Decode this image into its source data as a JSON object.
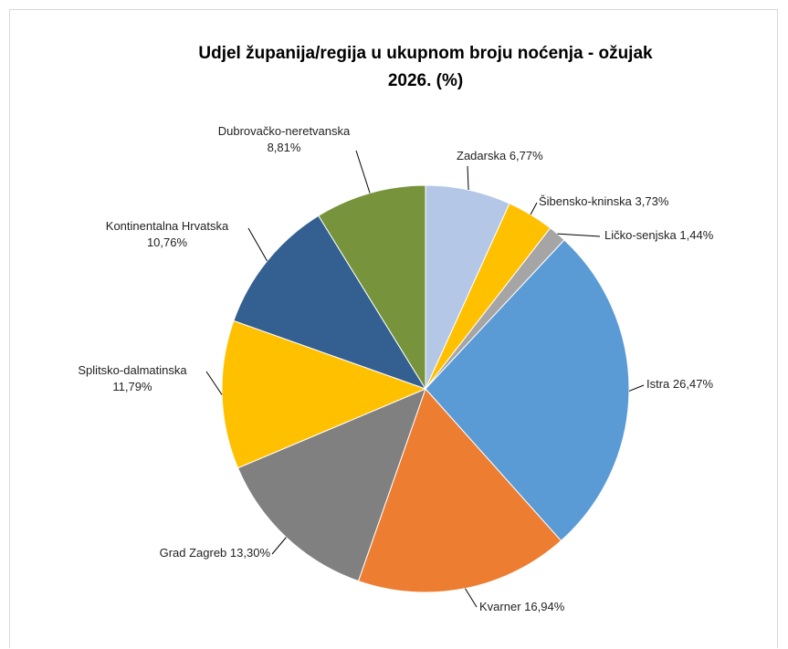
{
  "chart_data": {
    "type": "pie",
    "title": "Udjel županija/regija u ukupnom broju noćenja - ožujak 2026. (%)",
    "categories": [
      "Zadarska",
      "Šibensko-kninska",
      "Ličko-senjska",
      "Istra",
      "Kvarner",
      "Grad Zagreb",
      "Splitsko-dalmatinska",
      "Kontinentalna Hrvatska",
      "Dubrovačko-neretvanska"
    ],
    "values": [
      6.77,
      3.73,
      1.44,
      26.47,
      16.94,
      13.3,
      11.79,
      10.76,
      8.81
    ],
    "value_labels": [
      "6,77%",
      "3,73%",
      "1,44%",
      "26,47%",
      "16,94%",
      "13,30%",
      "11,79%",
      "10,76%",
      "8,81%"
    ],
    "colors": [
      "#b4c7e7",
      "#ffc000",
      "#a5a5a5",
      "#5b9bd5",
      "#ed7d31",
      "#808080",
      "#ffc000",
      "#335f91",
      "#77933c"
    ]
  }
}
